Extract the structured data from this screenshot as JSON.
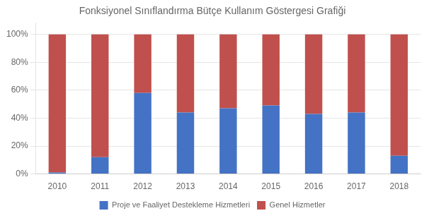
{
  "chart_data": {
    "type": "bar",
    "title": "Fonksiyonel Sınıflandırma Bütçe Kullanım Göstergesi Grafiği",
    "categories": [
      "2010",
      "2011",
      "2012",
      "2013",
      "2014",
      "2015",
      "2016",
      "2017",
      "2018"
    ],
    "series": [
      {
        "name": "Proje ve Faaliyet Destekleme Hizmetleri",
        "color": "#4472C4",
        "values": [
          1,
          12,
          58,
          44,
          47,
          49,
          43,
          44,
          13
        ]
      },
      {
        "name": "Genel Hizmetler",
        "color": "#C0504D",
        "values": [
          99,
          88,
          42,
          56,
          53,
          51,
          57,
          56,
          87
        ]
      }
    ],
    "stacked": true,
    "ylim": [
      0,
      108
    ],
    "yticks": [
      {
        "value": 0,
        "label": "0%"
      },
      {
        "value": 20,
        "label": "20%"
      },
      {
        "value": 40,
        "label": "40%"
      },
      {
        "value": 60,
        "label": "60%"
      },
      {
        "value": 80,
        "label": "80%"
      },
      {
        "value": 100,
        "label": "100%"
      }
    ],
    "grid": true,
    "legend": "bottom"
  }
}
